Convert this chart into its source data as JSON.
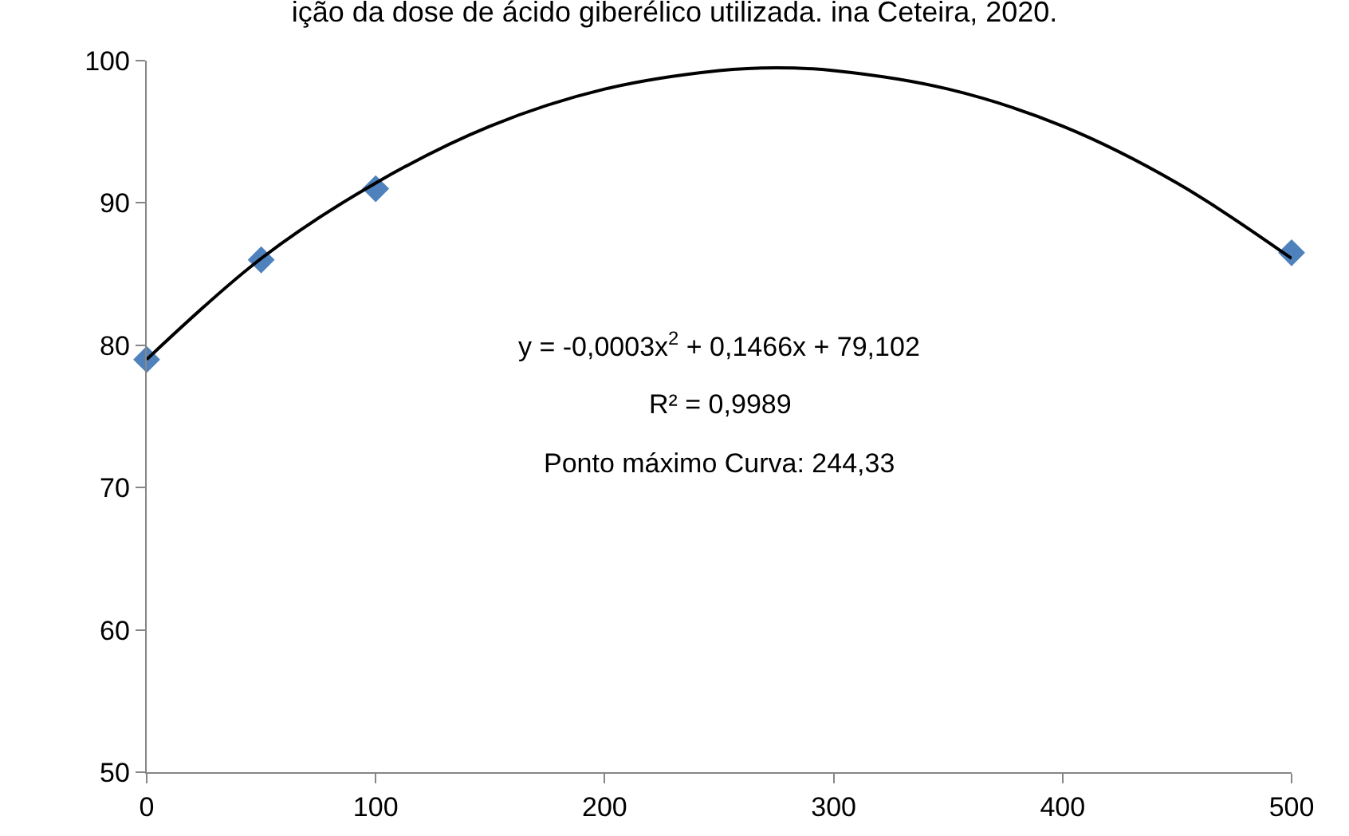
{
  "chart_data": {
    "type": "scatter",
    "title": "ição da dose de ácido giberélico utilizada. ina Ceteira, 2020.",
    "x": [
      0,
      50,
      100,
      500
    ],
    "series": [
      {
        "color": "#4f81bd",
        "marker": "diamond",
        "values": [
          79,
          86,
          91,
          86.5
        ]
      },
      {
        "type": "line",
        "color": "#000000",
        "marker": "none",
        "x": [
          0,
          50,
          100,
          150,
          200,
          250,
          275,
          300,
          350,
          400,
          450,
          500
        ],
        "values": [
          79,
          86.1,
          91.4,
          95.4,
          98,
          99.3,
          99.5,
          99.3,
          98,
          95.4,
          91.4,
          86.1
        ]
      }
    ],
    "xlim": [
      0,
      500
    ],
    "xticks": [
      0,
      100,
      200,
      300,
      400,
      500
    ],
    "ylim": [
      50,
      100
    ],
    "yticks": [
      50,
      60,
      70,
      80,
      90,
      100
    ],
    "grid": false,
    "legend": false,
    "annotations": [
      "y = -0,0003x$^{2}$ + 0,1466x + 79,102",
      "R² = 0,9989",
      "Ponto máximo Curva: 244,33"
    ]
  }
}
